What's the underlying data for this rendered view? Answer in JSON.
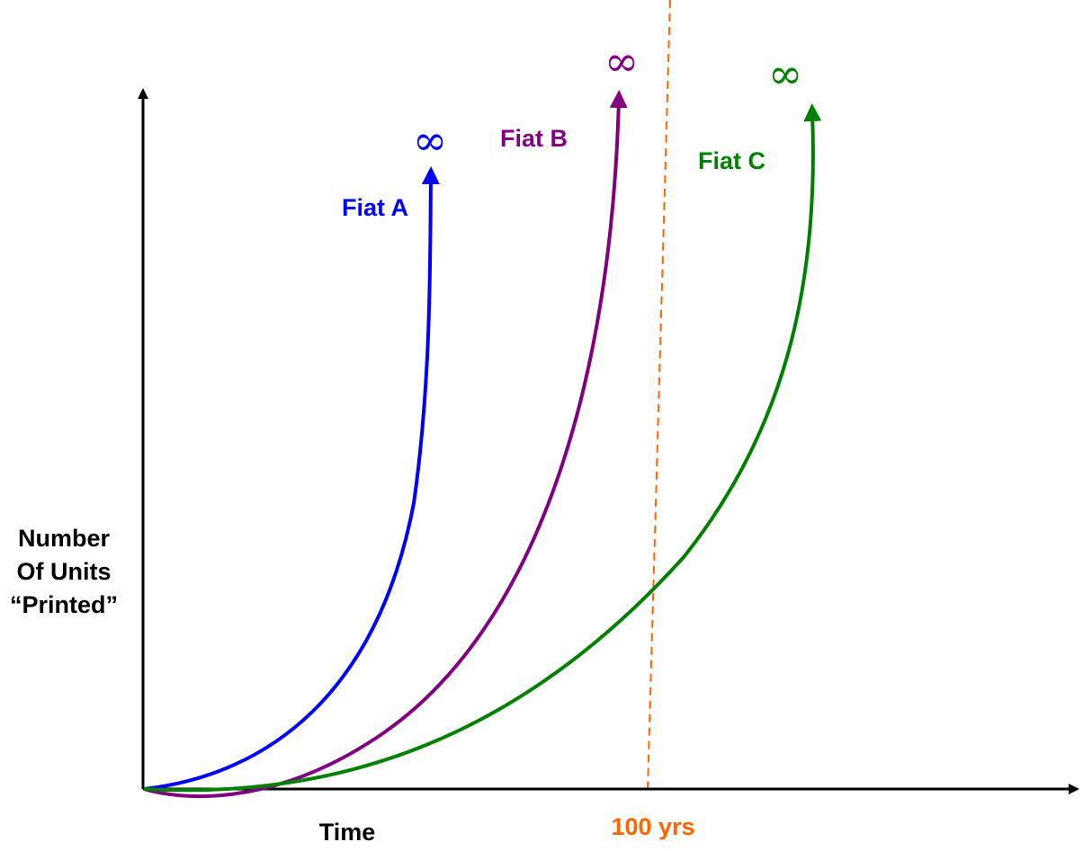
{
  "chart_data": {
    "type": "line",
    "title": "",
    "ylabel_lines": [
      "Number",
      "Of Units",
      "“Printed”"
    ],
    "xlabel": "Time",
    "axis_color": "#000000",
    "grid": false,
    "legend": "none",
    "series": [
      {
        "name": "Fiat A",
        "color": "#0000ff",
        "end_label": "∞"
      },
      {
        "name": "Fiat B",
        "color": "#800080",
        "end_label": "∞"
      },
      {
        "name": "Fiat C",
        "color": "#008000",
        "end_label": "∞"
      }
    ],
    "annotations": [
      {
        "type": "vertical-dashed-line",
        "label": "100 yrs",
        "color": "#ff6600"
      }
    ]
  }
}
